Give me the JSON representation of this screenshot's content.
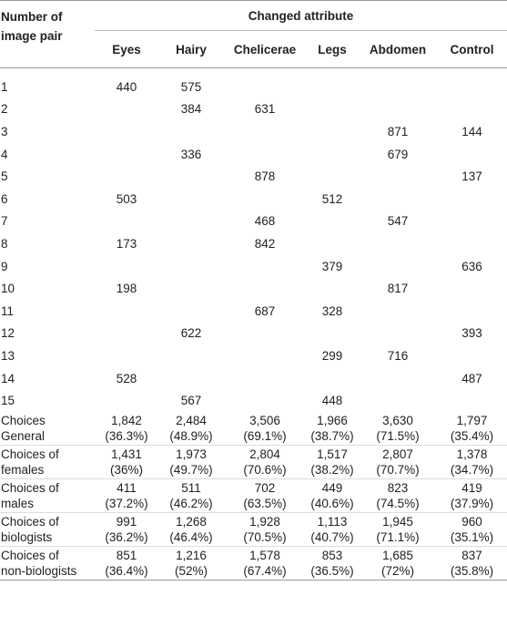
{
  "table": {
    "stub_header": [
      "Number of",
      "image pair"
    ],
    "group_header": "Changed attribute",
    "columns": [
      "Eyes",
      "Hairy",
      "Chelicerae",
      "Legs",
      "Abdomen",
      "Control"
    ],
    "rows": [
      {
        "label": "1",
        "cells": [
          "440",
          "575",
          "",
          "",
          "",
          ""
        ]
      },
      {
        "label": "2",
        "cells": [
          "",
          "384",
          "631",
          "",
          "",
          ""
        ]
      },
      {
        "label": "3",
        "cells": [
          "",
          "",
          "",
          "",
          "871",
          "144"
        ]
      },
      {
        "label": "4",
        "cells": [
          "",
          "336",
          "",
          "",
          "679",
          ""
        ]
      },
      {
        "label": "5",
        "cells": [
          "",
          "",
          "878",
          "",
          "",
          "137"
        ]
      },
      {
        "label": "6",
        "cells": [
          "503",
          "",
          "",
          "512",
          "",
          ""
        ]
      },
      {
        "label": "7",
        "cells": [
          "",
          "",
          "468",
          "",
          "547",
          ""
        ]
      },
      {
        "label": "8",
        "cells": [
          "173",
          "",
          "842",
          "",
          "",
          ""
        ]
      },
      {
        "label": "9",
        "cells": [
          "",
          "",
          "",
          "379",
          "",
          "636"
        ]
      },
      {
        "label": "10",
        "cells": [
          "198",
          "",
          "",
          "",
          "817",
          ""
        ]
      },
      {
        "label": "11",
        "cells": [
          "",
          "",
          "687",
          "328",
          "",
          ""
        ]
      },
      {
        "label": "12",
        "cells": [
          "",
          "622",
          "",
          "",
          "",
          "393"
        ]
      },
      {
        "label": "13",
        "cells": [
          "",
          "",
          "",
          "299",
          "716",
          ""
        ]
      },
      {
        "label": "14",
        "cells": [
          "528",
          "",
          "",
          "",
          "",
          "487"
        ]
      },
      {
        "label": "15",
        "cells": [
          "",
          "567",
          "",
          "448",
          "",
          ""
        ]
      }
    ],
    "choice_rows": [
      {
        "label": [
          "Choices",
          "General"
        ],
        "cells": [
          [
            "1,842",
            "(36.3%)"
          ],
          [
            "2,484",
            "(48.9%)"
          ],
          [
            "3,506",
            "(69.1%)"
          ],
          [
            "1,966",
            "(38.7%)"
          ],
          [
            "3,630",
            "(71.5%)"
          ],
          [
            "1,797",
            "(35.4%)"
          ]
        ]
      },
      {
        "label": [
          "Choices of",
          "females"
        ],
        "cells": [
          [
            "1,431",
            "(36%)"
          ],
          [
            "1,973",
            "(49.7%)"
          ],
          [
            "2,804",
            "(70.6%)"
          ],
          [
            "1,517",
            "(38.2%)"
          ],
          [
            "2,807",
            "(70.7%)"
          ],
          [
            "1,378",
            "(34.7%)"
          ]
        ]
      },
      {
        "label": [
          "Choices of",
          "males"
        ],
        "cells": [
          [
            "411",
            "(37.2%)"
          ],
          [
            "511",
            "(46.2%)"
          ],
          [
            "702",
            "(63.5%)"
          ],
          [
            "449",
            "(40.6%)"
          ],
          [
            "823",
            "(74.5%)"
          ],
          [
            "419",
            "(37.9%)"
          ]
        ]
      },
      {
        "label": [
          "Choices of",
          "biologists"
        ],
        "cells": [
          [
            "991",
            "(36.2%)"
          ],
          [
            "1,268",
            "(46.4%)"
          ],
          [
            "1,928",
            "(70.5%)"
          ],
          [
            "1,113",
            "(40.7%)"
          ],
          [
            "1,945",
            "(71.1%)"
          ],
          [
            "960",
            "(35.1%)"
          ]
        ]
      },
      {
        "label": [
          "Choices of",
          "non-biologists"
        ],
        "cells": [
          [
            "851",
            "(36.4%)"
          ],
          [
            "1,216",
            "(52%)"
          ],
          [
            "1,578",
            "(67.4%)"
          ],
          [
            "853",
            "(36.5%)"
          ],
          [
            "1,685",
            "(72%)"
          ],
          [
            "837",
            "(35.8%)"
          ]
        ]
      }
    ]
  }
}
